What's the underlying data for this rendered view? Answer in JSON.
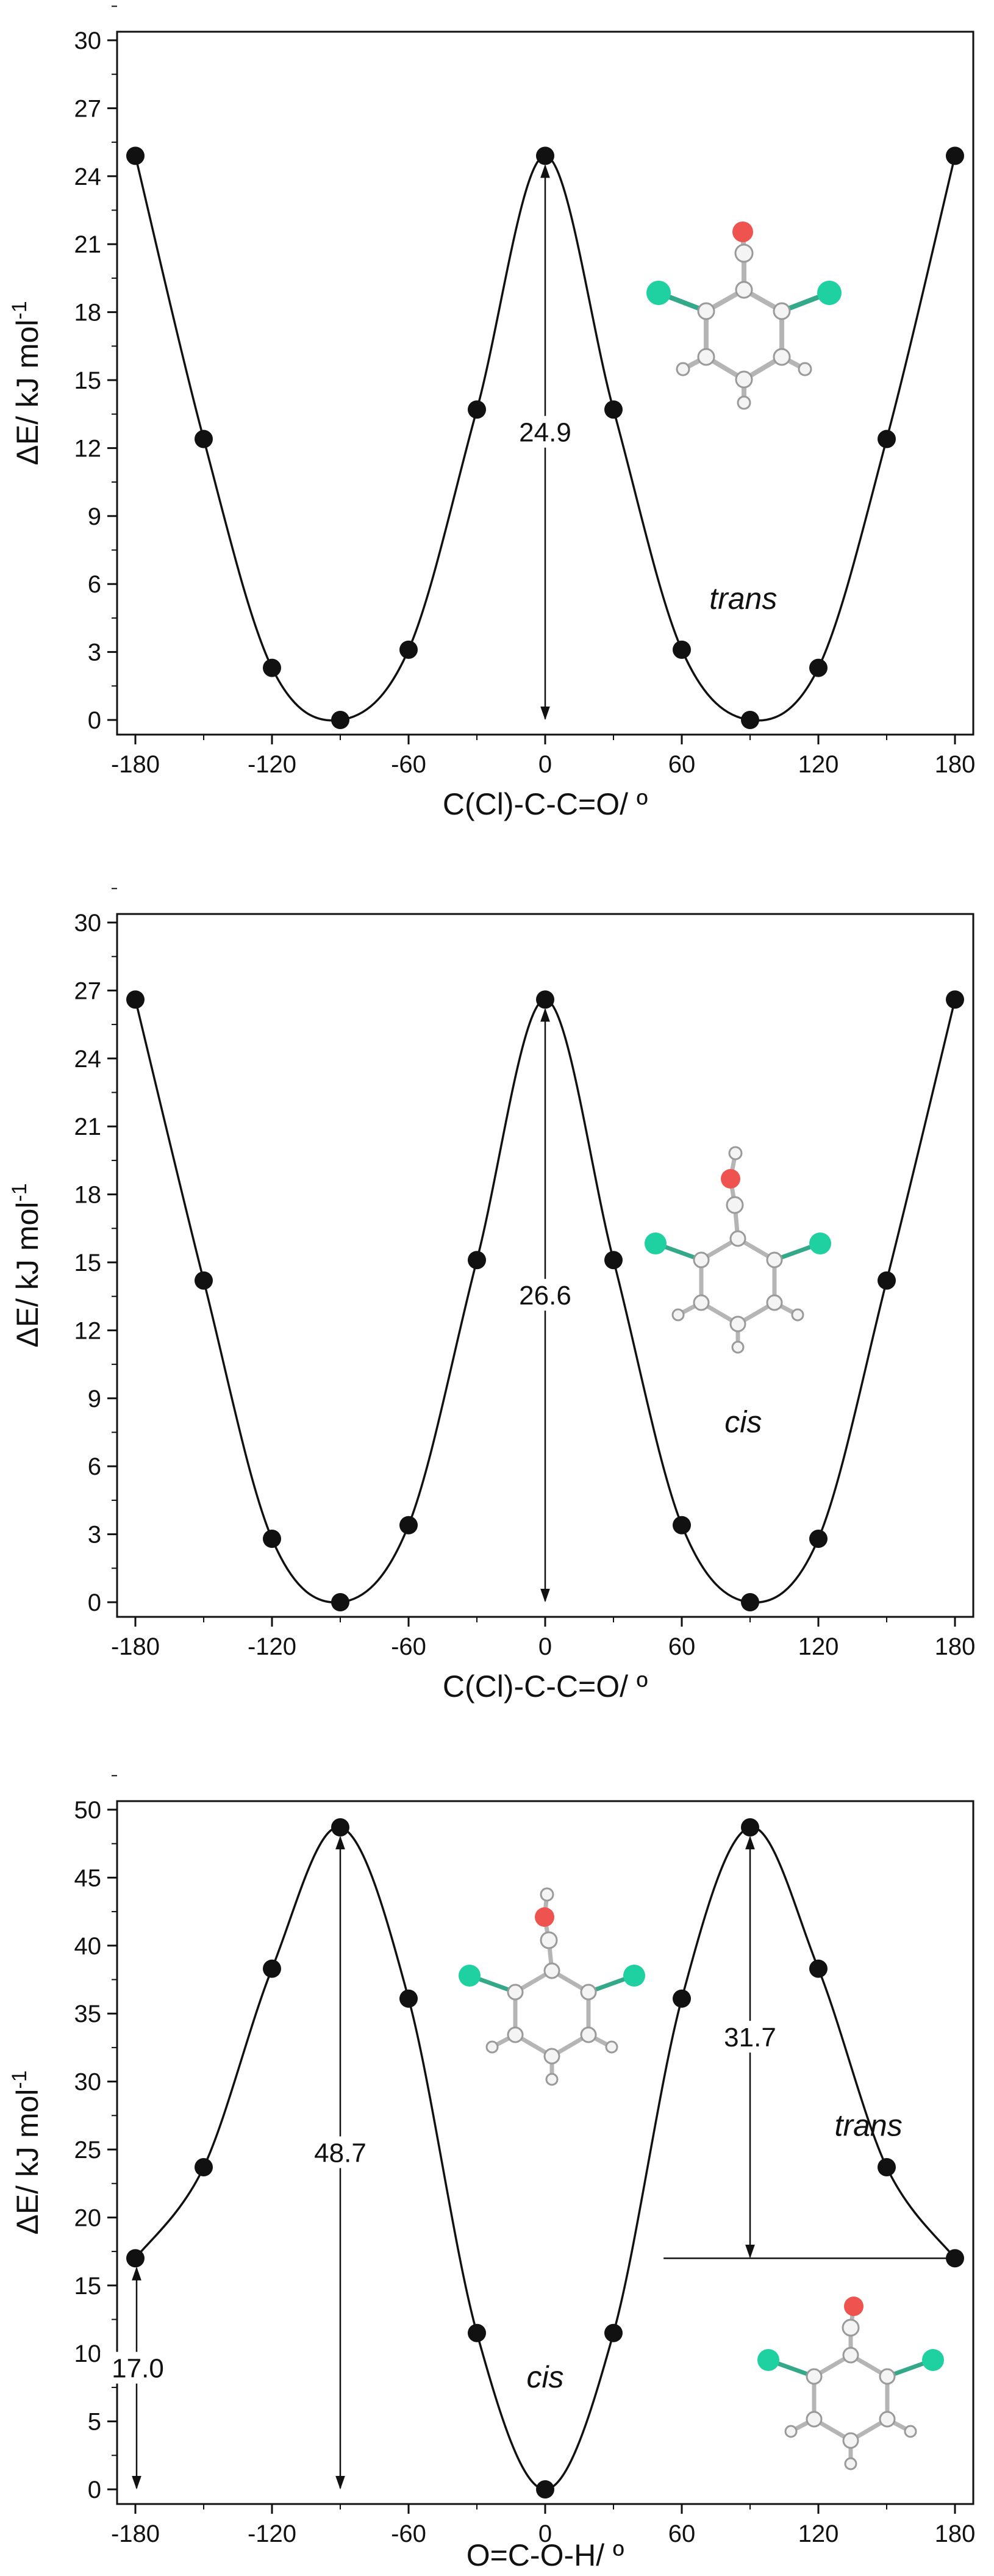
{
  "chart_data": [
    {
      "type": "line",
      "title": "",
      "xlabel": "C(Cl)-C-C=O/ º",
      "ylabel": "ΔE/ kJ mol-1",
      "xlim": [
        -180,
        180
      ],
      "ylim": [
        0,
        30
      ],
      "xticks": [
        -180,
        -120,
        -60,
        0,
        60,
        120,
        180
      ],
      "yticks": [
        0,
        3,
        6,
        9,
        12,
        15,
        18,
        21,
        24,
        27,
        30
      ],
      "grid": false,
      "series": [
        {
          "x": [
            -180,
            -150,
            -120,
            -90,
            -60,
            -30,
            0,
            30,
            60,
            90,
            120,
            150,
            180
          ],
          "y": [
            24.9,
            12.4,
            2.3,
            0.0,
            3.1,
            13.7,
            24.9,
            13.7,
            3.1,
            0.0,
            2.3,
            12.4,
            24.9
          ]
        }
      ],
      "annotations": [
        {
          "text": "24.9",
          "type": "double-arrow",
          "x": 0,
          "y_from": 0,
          "y_to": 24.9
        },
        {
          "text": "trans",
          "x": 87,
          "y": 4.9
        }
      ],
      "molecule_icon": "2,6-dichlorobenzaldehyde-icon",
      "colors": {
        "chlorine": "#1fd1a0",
        "oxygen": "#ef5350"
      }
    },
    {
      "type": "line",
      "title": "",
      "xlabel": "C(Cl)-C-C=O/ º",
      "ylabel": "ΔE/ kJ mol-1",
      "xlim": [
        -180,
        180
      ],
      "ylim": [
        0,
        30
      ],
      "xticks": [
        -180,
        -120,
        -60,
        0,
        60,
        120,
        180
      ],
      "yticks": [
        0,
        3,
        6,
        9,
        12,
        15,
        18,
        21,
        24,
        27,
        30
      ],
      "grid": false,
      "series": [
        {
          "x": [
            -180,
            -150,
            -120,
            -90,
            -60,
            -30,
            0,
            30,
            60,
            90,
            120,
            150,
            180
          ],
          "y": [
            26.6,
            14.2,
            2.8,
            0.0,
            3.4,
            15.1,
            26.6,
            15.1,
            3.4,
            0.0,
            2.8,
            14.2,
            26.6
          ]
        }
      ],
      "annotations": [
        {
          "text": "26.6",
          "type": "double-arrow",
          "x": 0,
          "y_from": 0,
          "y_to": 26.6
        },
        {
          "text": "cis",
          "x": 87,
          "y": 7.5
        }
      ],
      "molecule_icon": "2,6-dichlorobenzoic-acid-icon",
      "colors": {
        "chlorine": "#1fd1a0",
        "oxygen": "#ef5350"
      }
    },
    {
      "type": "line",
      "title": "",
      "xlabel": "O=C-O-H/ º",
      "ylabel": "ΔE/ kJ mol-1",
      "xlim": [
        -180,
        180
      ],
      "ylim": [
        0,
        50
      ],
      "xticks": [
        -180,
        -120,
        -60,
        0,
        60,
        120,
        180
      ],
      "yticks": [
        0,
        5,
        10,
        15,
        20,
        25,
        30,
        35,
        40,
        45,
        50
      ],
      "grid": false,
      "series": [
        {
          "x": [
            -180,
            -150,
            -120,
            -90,
            -60,
            -30,
            0,
            30,
            60,
            90,
            120,
            150,
            180
          ],
          "y": [
            17.0,
            23.7,
            38.3,
            48.7,
            36.1,
            11.5,
            0.0,
            11.5,
            36.1,
            48.7,
            38.3,
            23.7,
            17.0
          ]
        }
      ],
      "annotations": [
        {
          "text": "17.0",
          "type": "double-arrow",
          "x": -180,
          "y_from": 0,
          "y_to": 17.0
        },
        {
          "text": "48.7",
          "type": "double-arrow",
          "x": -90,
          "y_from": 0,
          "y_to": 48.7
        },
        {
          "text": "31.7",
          "type": "double-arrow",
          "x": 90,
          "y_from": 17.0,
          "y_to": 48.7
        },
        {
          "text": "cis",
          "x": 0,
          "y": 7.5
        },
        {
          "text": "trans",
          "x": 142,
          "y": 26
        }
      ],
      "molecule_icons": [
        "2,6-dichlorobenzoic-acid-cis-icon",
        "2,6-dichlorobenzoic-acid-trans-icon"
      ],
      "colors": {
        "chlorine": "#1fd1a0",
        "oxygen": "#ef5350"
      }
    }
  ]
}
